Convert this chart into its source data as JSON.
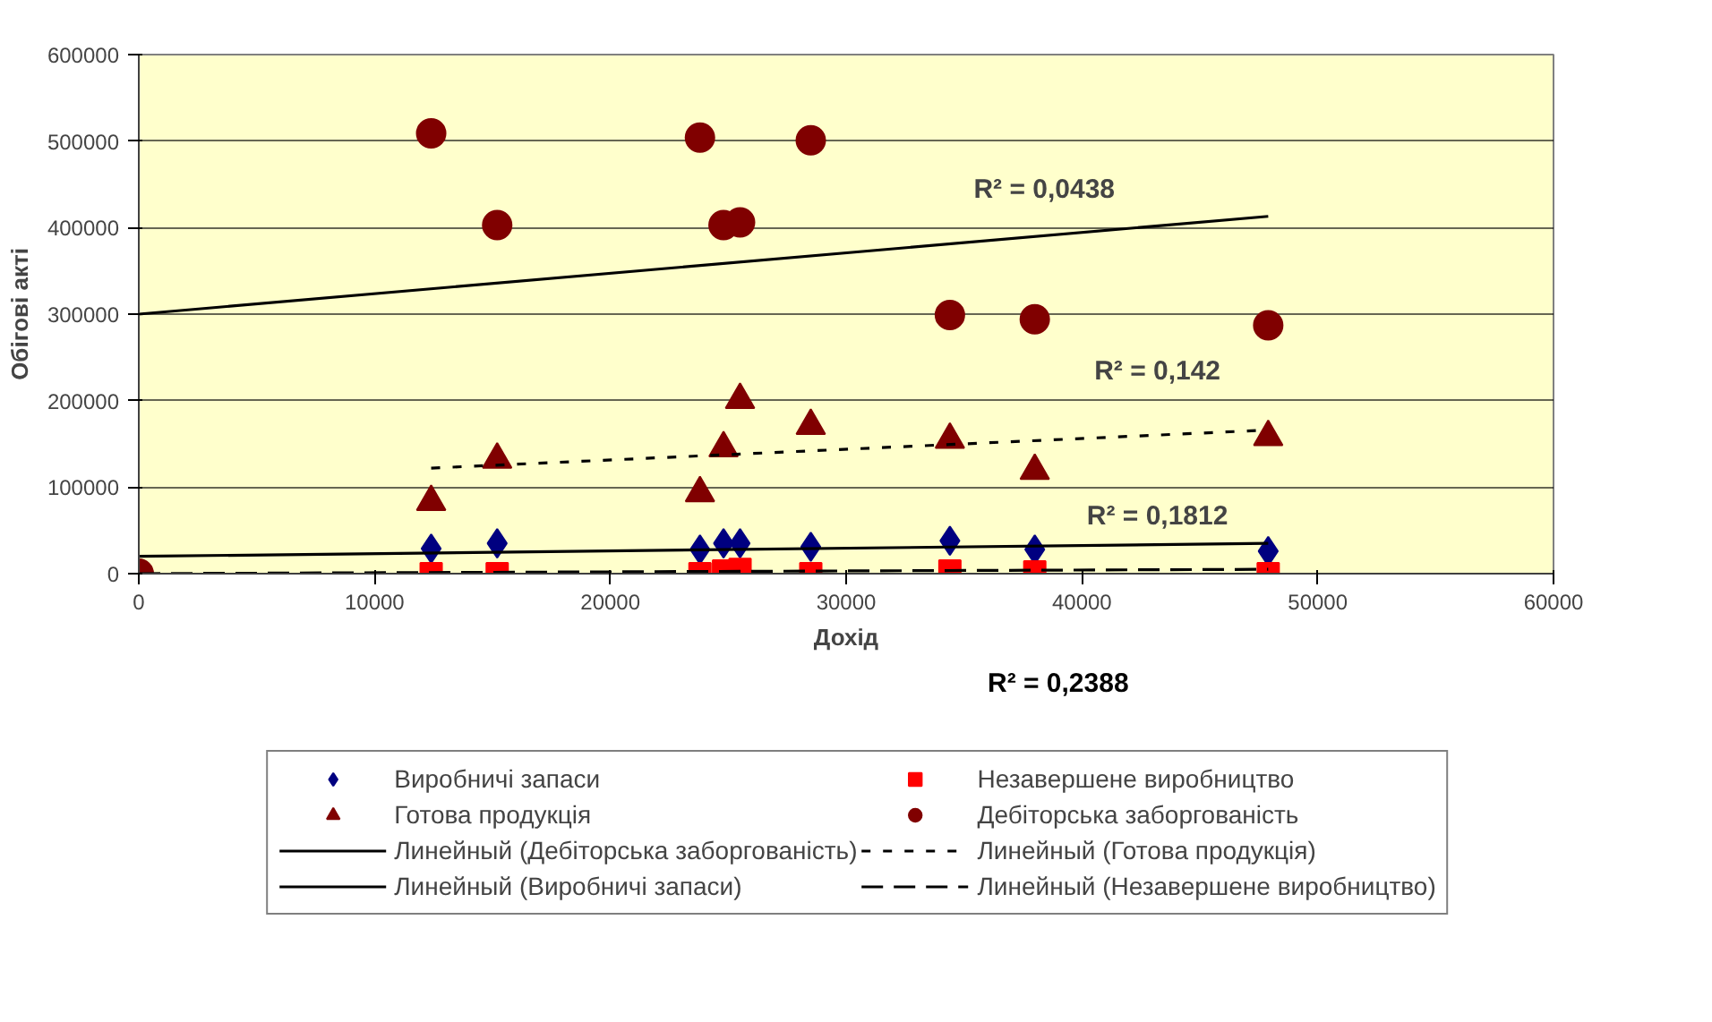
{
  "chart_data": {
    "type": "scatter",
    "xlabel": "Дохід",
    "ylabel": "Обігові акті",
    "x": [
      0,
      12400,
      15200,
      23800,
      24800,
      25500,
      28500,
      34400,
      38000,
      47900
    ],
    "series": [
      {
        "name": "Виробничі запаси",
        "color": "#000080",
        "marker": "diamond",
        "values": [
          null,
          29000,
          35000,
          28000,
          35000,
          35000,
          31000,
          38000,
          28000,
          26000
        ]
      },
      {
        "name": "Незавершене виробництво",
        "color": "#ff0000",
        "marker": "square",
        "values": [
          null,
          0,
          0,
          0,
          3000,
          5000,
          0,
          3000,
          2000,
          0
        ]
      },
      {
        "name": "Готова продукція",
        "color": "#800000",
        "marker": "triangle",
        "values": [
          null,
          83000,
          132000,
          93000,
          145000,
          201000,
          171000,
          155000,
          119000,
          158000
        ]
      },
      {
        "name": "Дебіторська заборгованість",
        "color": "#800000",
        "marker": "circle",
        "values": [
          0,
          509000,
          403000,
          504000,
          403000,
          406000,
          501000,
          299000,
          294000,
          287000
        ]
      },
      {
        "name": "Линейный (Дебіторська заборгованість)",
        "type": "line",
        "color": "#000000",
        "line_style": "solid",
        "x": [
          0,
          47900
        ],
        "values": [
          300000,
          413000
        ]
      },
      {
        "name": "Линейный (Готова продукція)",
        "type": "line",
        "color": "#000000",
        "line_style": "dotted",
        "x": [
          12400,
          47900
        ],
        "values": [
          122000,
          166000
        ]
      },
      {
        "name": "Линейный (Виробничі запаси)",
        "type": "line",
        "color": "#000000",
        "line_style": "solid",
        "x": [
          0,
          47900
        ],
        "values": [
          20000,
          35000
        ]
      },
      {
        "name": "Линейный (Незавершене виробництво)",
        "type": "line",
        "color": "#000000",
        "line_style": "dashed",
        "x": [
          0,
          47900
        ],
        "values": [
          0,
          5000
        ]
      }
    ],
    "xlim": [
      0,
      60000
    ],
    "xticks": [
      0,
      10000,
      20000,
      30000,
      40000,
      50000,
      60000
    ],
    "ylim": [
      0,
      600000
    ],
    "yticks": [
      0,
      100000,
      200000,
      300000,
      400000,
      500000,
      600000
    ],
    "grid": "y",
    "legend": "bottom",
    "annotations": [
      "R² = 0,0438",
      "R² = 0,142",
      "R² = 0,1812",
      "R² = 0,2388"
    ]
  }
}
